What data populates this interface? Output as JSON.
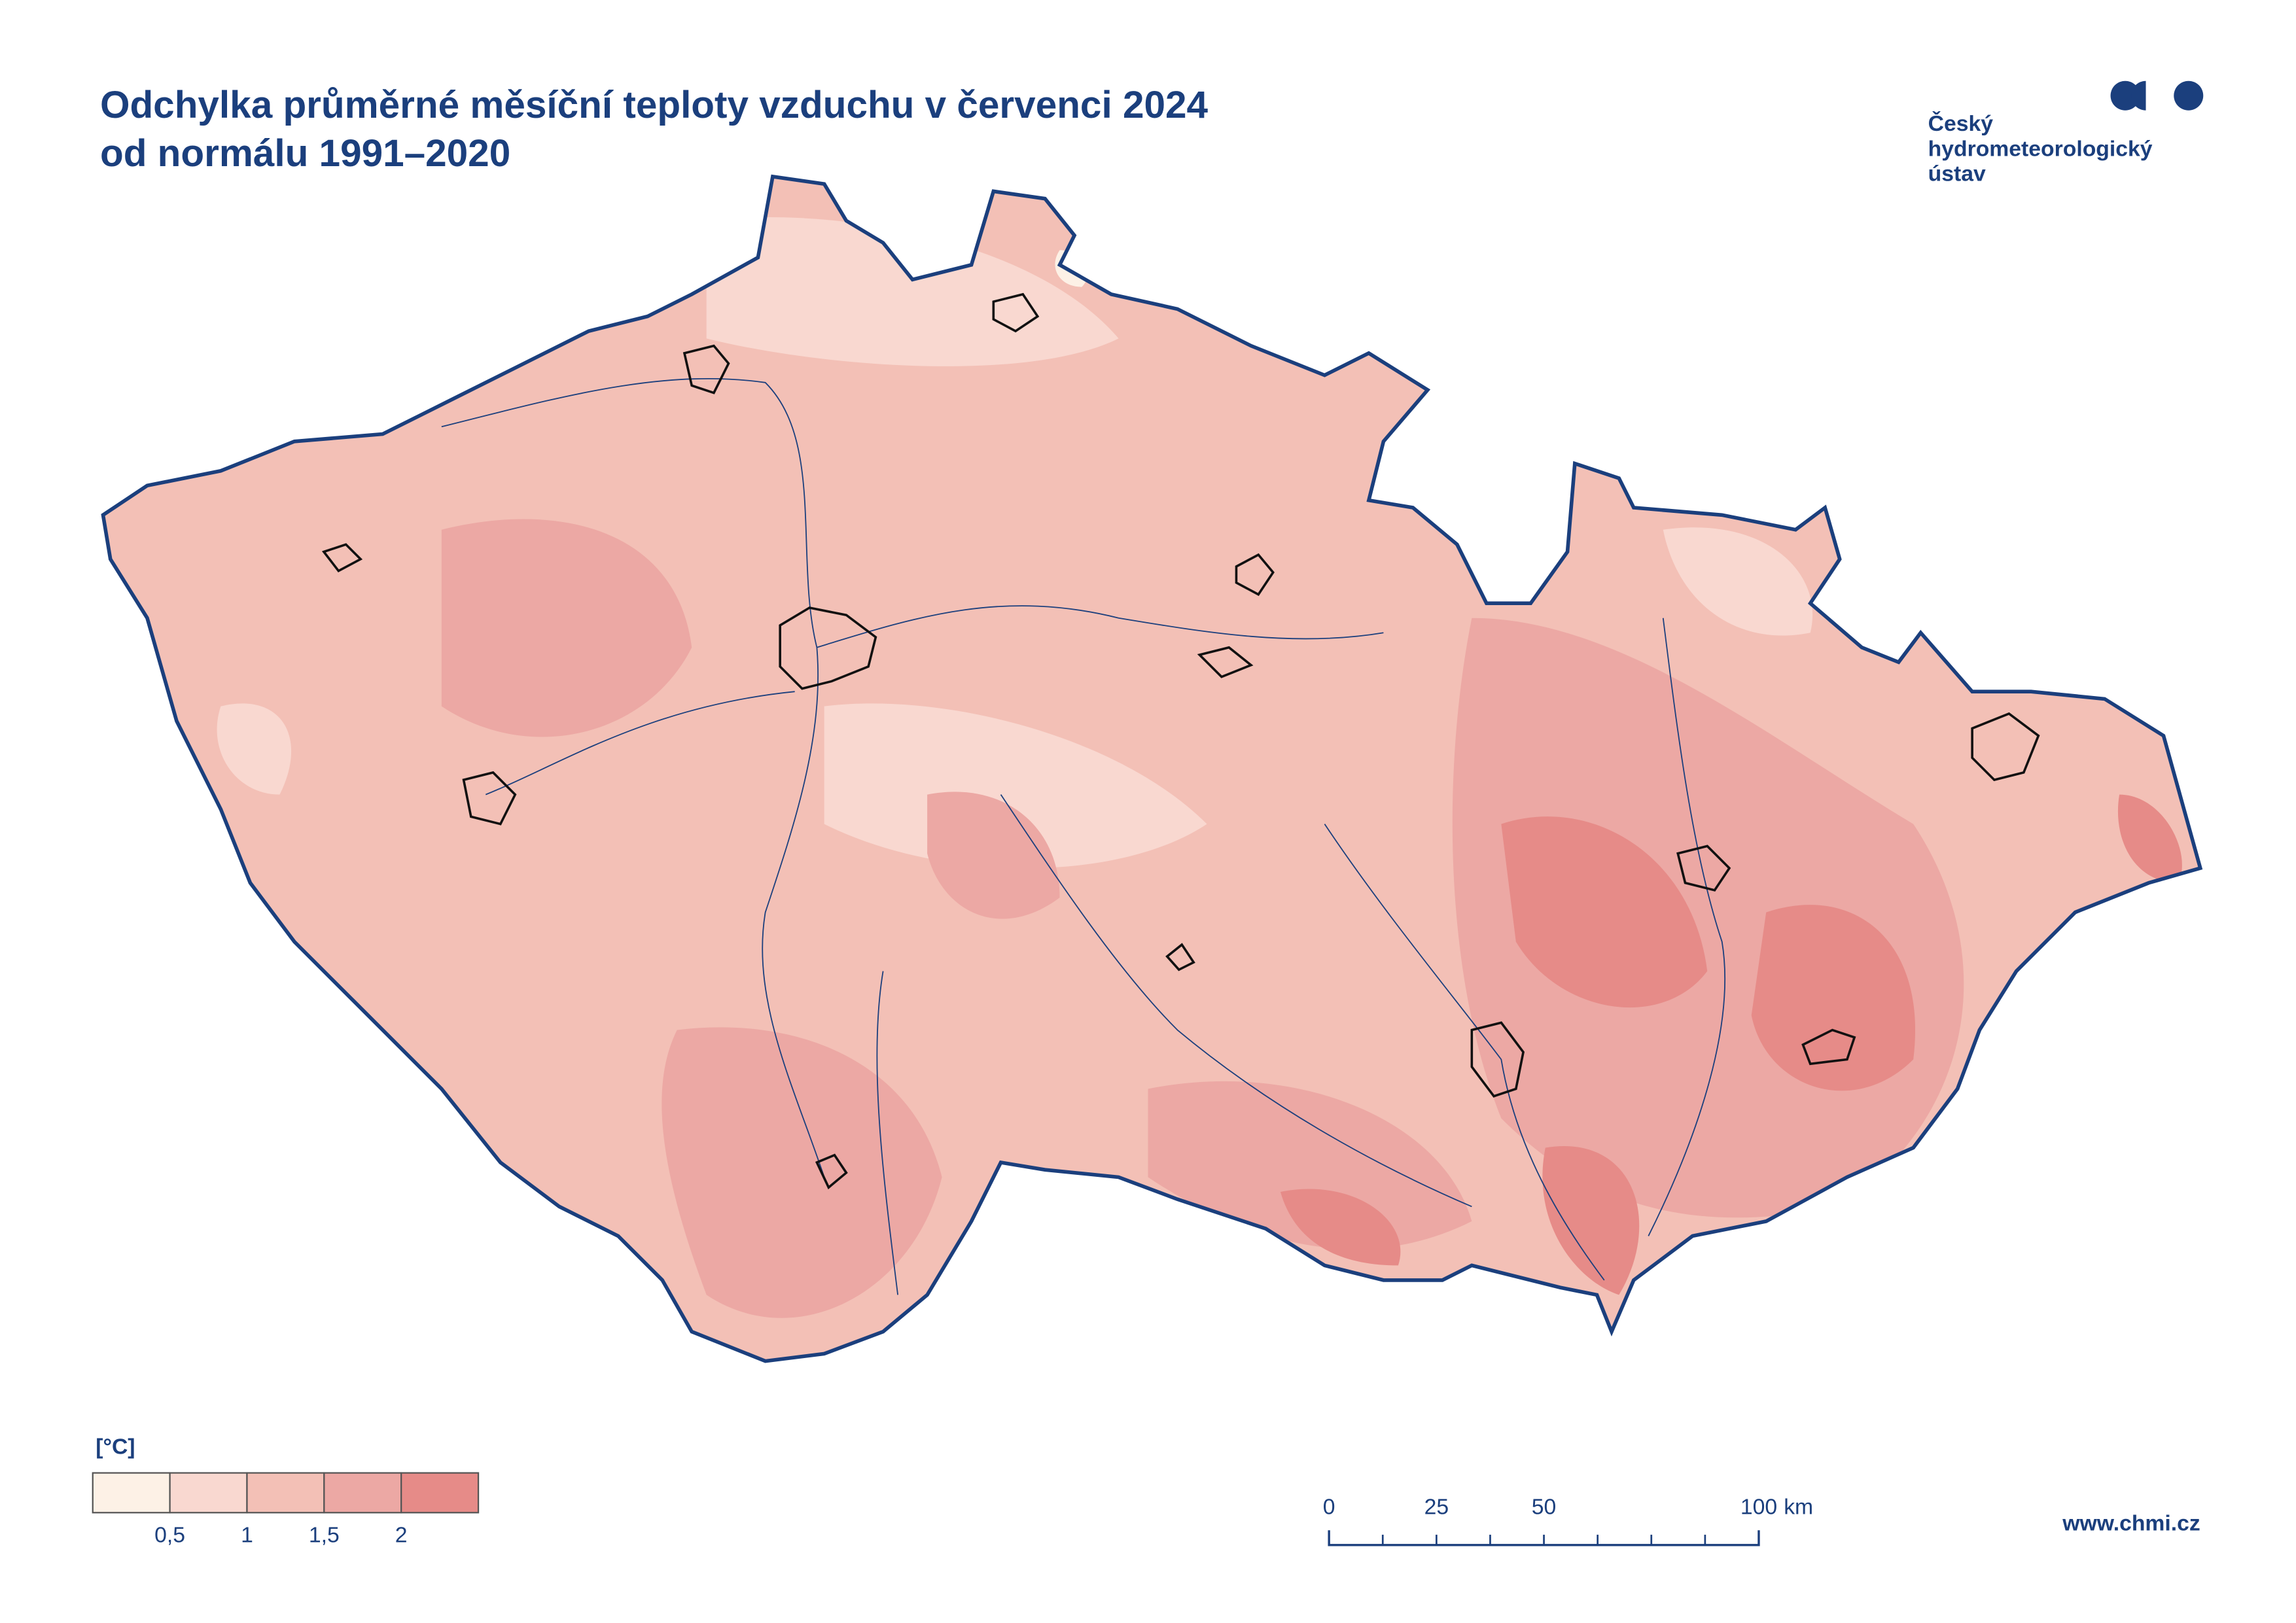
{
  "title": {
    "line1": "Odchylka průměrné měsíční teploty vzduchu v červenci 2024",
    "line2": "od normálu 1991–2020"
  },
  "logo": {
    "lines": [
      "Český",
      "hydrometeorologický",
      "ústav"
    ]
  },
  "legend": {
    "unit": "[°C]",
    "colors": [
      "#fdf1e6",
      "#f9d8d0",
      "#f3c0b6",
      "#eca8a4",
      "#e68b88"
    ],
    "labels": [
      "0,5",
      "1",
      "1,5",
      "2"
    ]
  },
  "scale_bar": {
    "labels": [
      "0",
      "25",
      "50",
      "100"
    ],
    "unit": "km"
  },
  "website": "www.chmi.cz"
}
